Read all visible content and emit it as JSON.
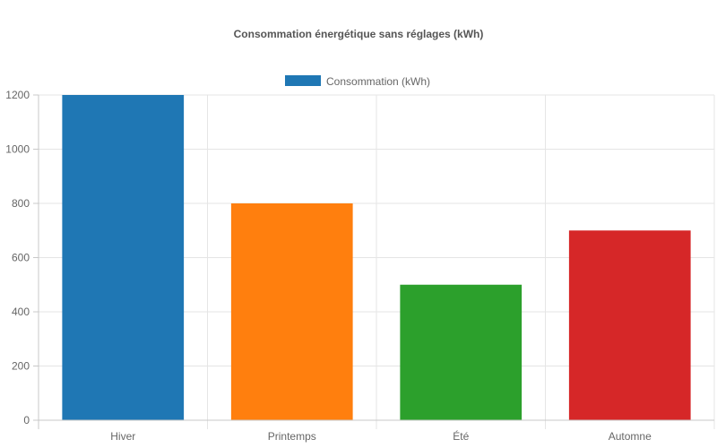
{
  "chart_data": {
    "type": "bar",
    "title": "Consommation énergétique sans réglages (kWh)",
    "categories": [
      "Hiver",
      "Printemps",
      "Été",
      "Automne"
    ],
    "series": [
      {
        "name": "Consommation (kWh)",
        "values": [
          1200,
          800,
          500,
          700
        ],
        "colors": [
          "#1f77b4",
          "#ff7f0e",
          "#2ca02c",
          "#d62728"
        ]
      }
    ],
    "xlabel": "",
    "ylabel": "",
    "ylim": [
      0,
      1200
    ],
    "yticks": [
      0,
      200,
      400,
      600,
      800,
      1000,
      1200
    ],
    "legend": {
      "position": "top-center",
      "swatch_color": "#1f77b4"
    },
    "grid": true
  }
}
